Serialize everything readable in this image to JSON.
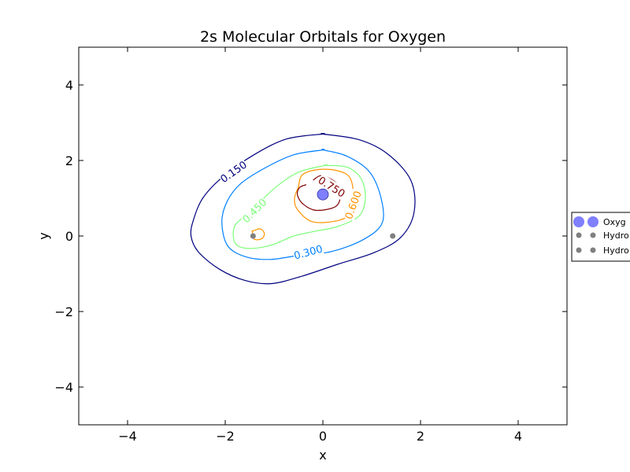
{
  "chart_data": {
    "type": "contour",
    "title": "2s Molecular Orbitals for Oxygen",
    "xlabel": "x",
    "ylabel": "y",
    "xlim": [
      -5,
      5
    ],
    "ylim": [
      -5,
      5
    ],
    "x_ticks": [
      -4,
      -2,
      0,
      2,
      4
    ],
    "y_ticks": [
      -4,
      -2,
      0,
      2,
      4
    ],
    "x_tick_labels": [
      "−4",
      "−2",
      "0",
      "2",
      "4"
    ],
    "y_tick_labels": [
      "−4",
      "−2",
      "0",
      "2",
      "4"
    ],
    "grid": false,
    "legend_position": "right, outside plot",
    "legend_entries": [
      "Oxyg",
      "Hydro",
      "Hydro"
    ],
    "contours": [
      {
        "level": 0.15,
        "label": "0.150",
        "color": "#00007f"
      },
      {
        "level": 0.3,
        "label": "0.300",
        "color": "#0080ff"
      },
      {
        "level": 0.45,
        "label": "0.450",
        "color": "#7dff7a"
      },
      {
        "level": 0.6,
        "label": "0.600",
        "color": "#ff9400"
      },
      {
        "level": 0.75,
        "label": "0.750",
        "color": "#7f0000"
      }
    ],
    "atoms": [
      {
        "name": "Oxygen",
        "x": 0.0,
        "y": 1.1,
        "color": "#7f7fff"
      },
      {
        "name": "Hydrogen",
        "x": -1.43,
        "y": 0.0,
        "color": "#7f7f7f"
      },
      {
        "name": "Hydrogen",
        "x": 1.43,
        "y": 0.0,
        "color": "#7f7f7f"
      }
    ]
  }
}
